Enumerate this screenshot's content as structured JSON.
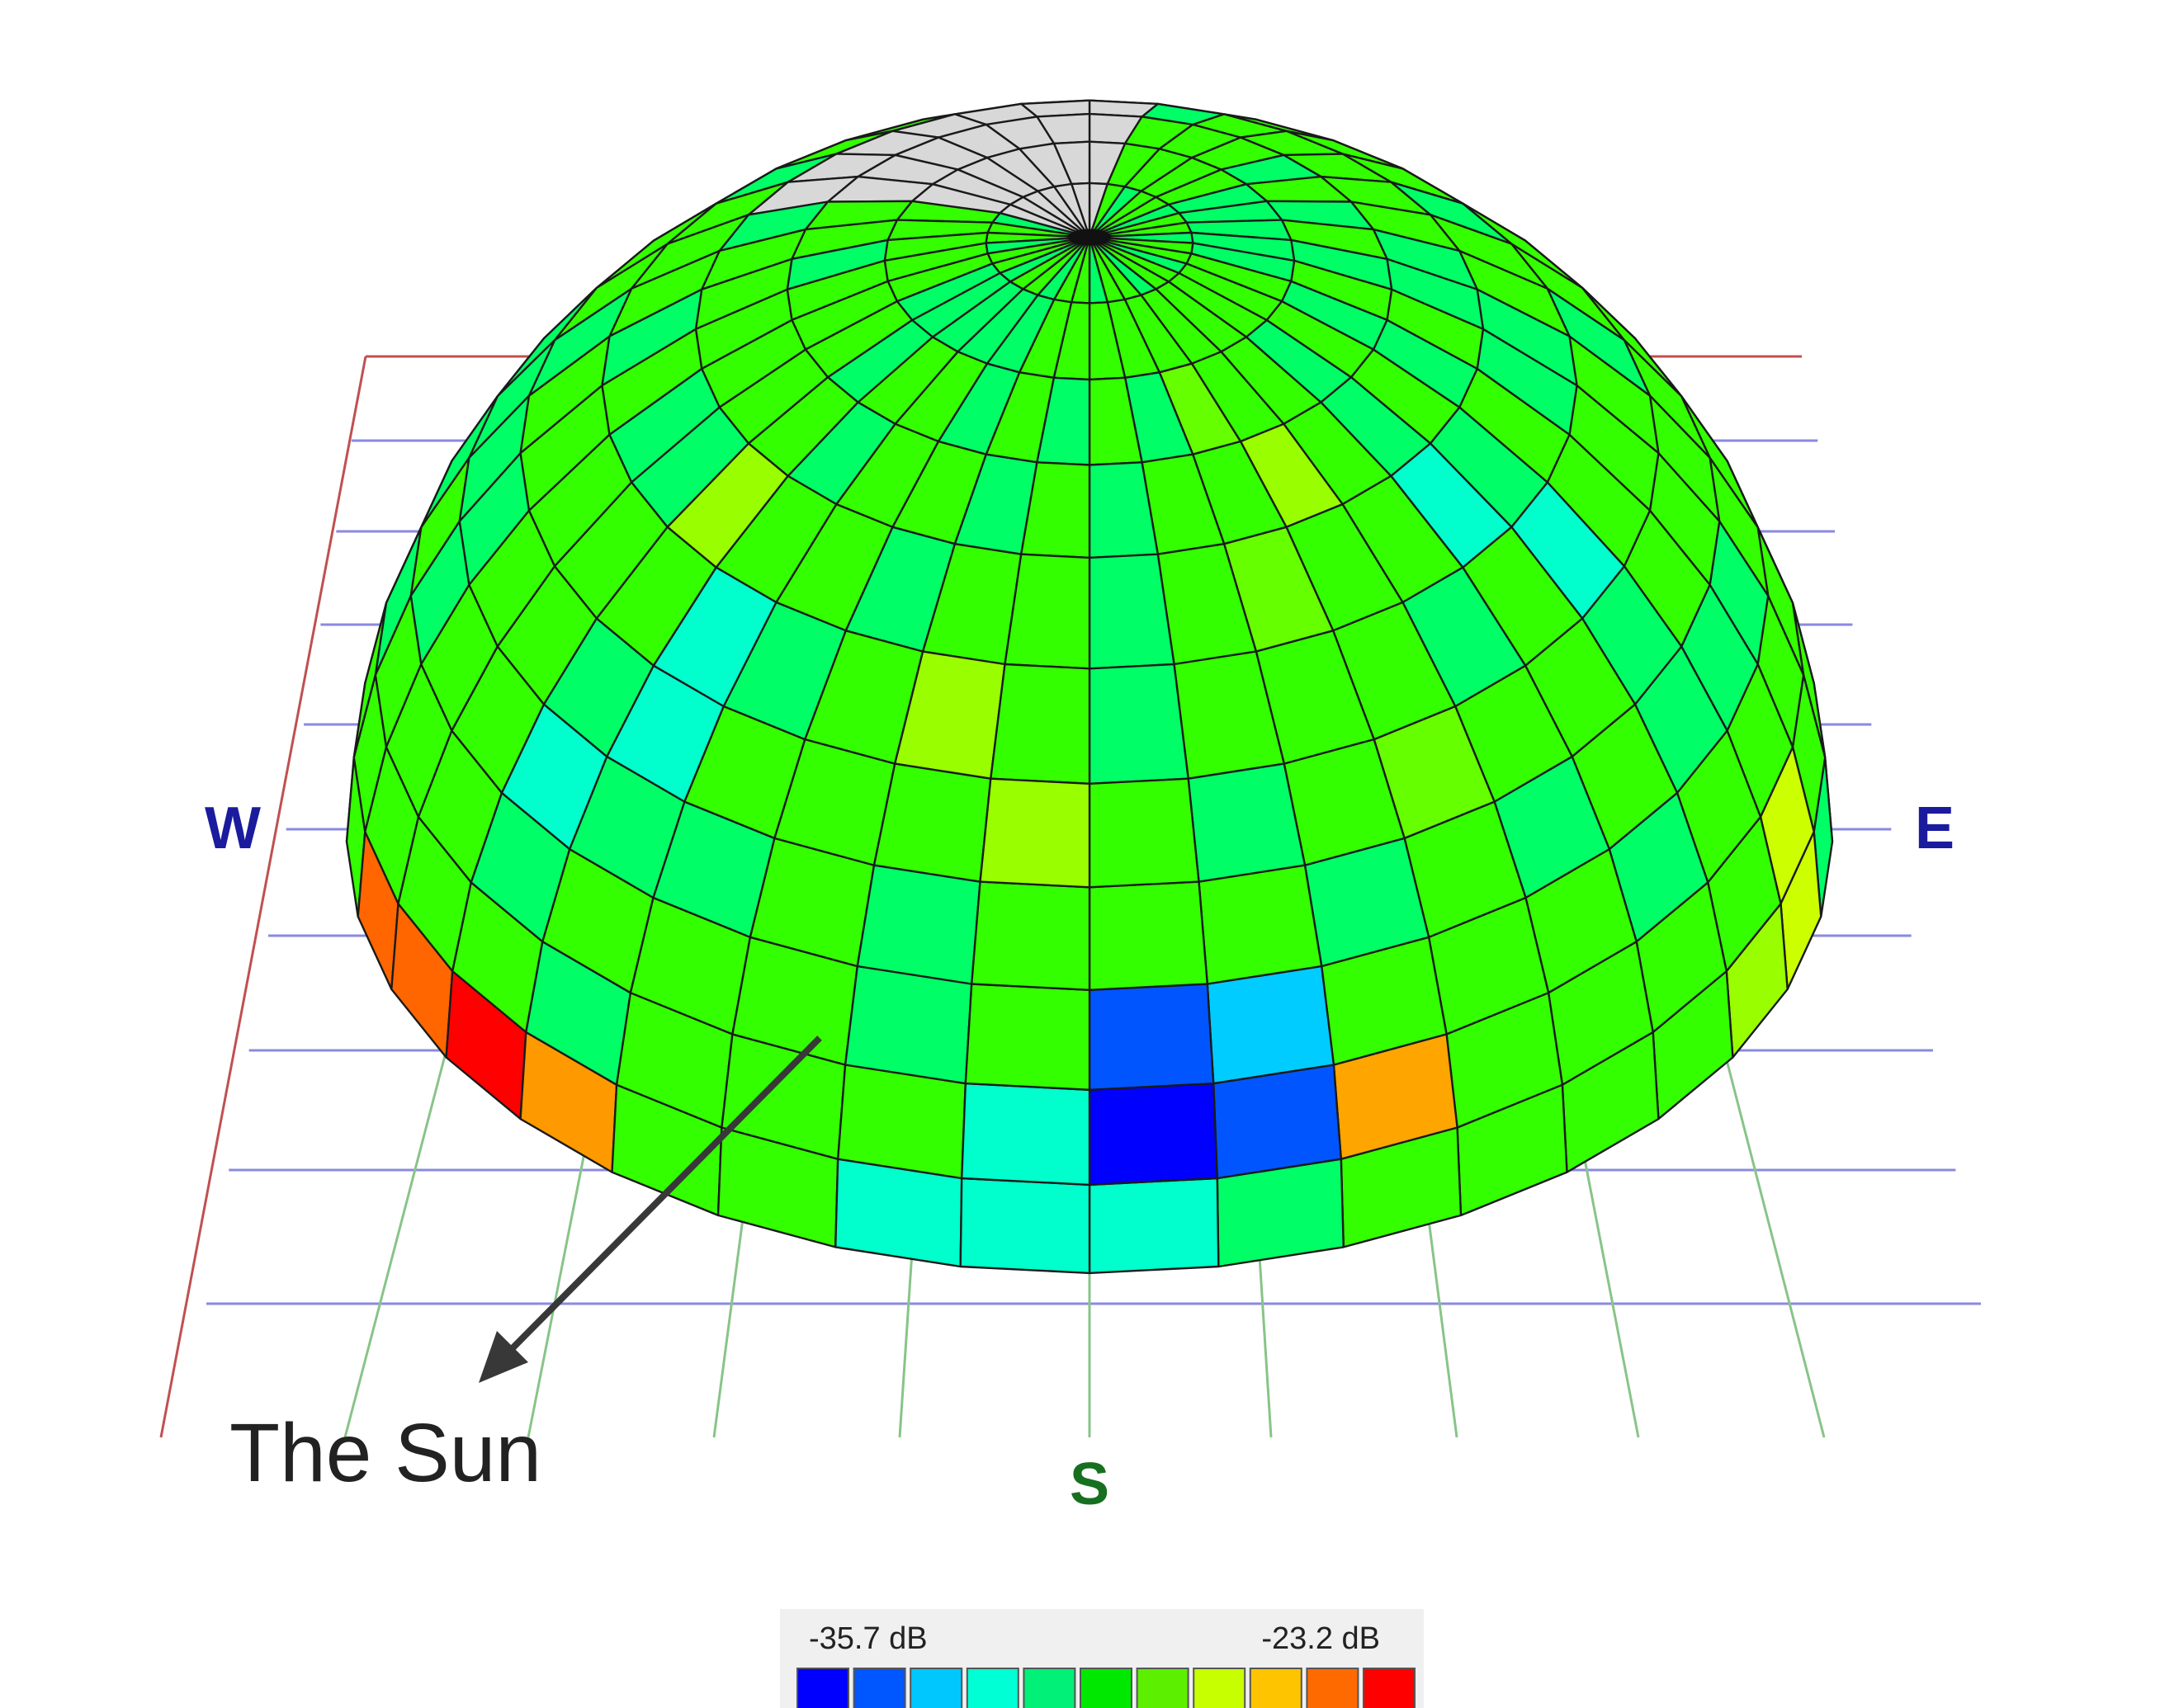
{
  "compass": {
    "west": "W",
    "east": "E",
    "south": "S"
  },
  "annotation": {
    "sun_label": "The Sun"
  },
  "legend": {
    "min_label": "-35.7 dB",
    "max_label": "-23.2 dB",
    "scale_colors": [
      "#0000ff",
      "#0057ff",
      "#00c8ff",
      "#00ffd4",
      "#00f078",
      "#00e800",
      "#5cf000",
      "#c8ff00",
      "#ffc400",
      "#ff6a00",
      "#ff0000"
    ]
  },
  "colors": {
    "grid_red": "#c05050",
    "grid_blue": "#8a8ae0",
    "grid_green": "#88c488",
    "mesh_line": "#1a1a1a",
    "north_cap": "#d8d8d8",
    "compass_blue": "#1b1b9e",
    "compass_green": "#17701f",
    "arrow": "#383838",
    "legend_background": "#f0f0f0"
  },
  "sky_map": {
    "rings_from_bottom": [
      [
        "#ccff00",
        "#99ff00",
        "#33ff00",
        "#33ff00",
        "#33ff00",
        "#33ff00",
        "#00ff66",
        "#00ffcc",
        "#00ffcc",
        "#00ffcc",
        "#33ff00",
        "#33ff00",
        "#ff9900",
        "#ff0000",
        "#ff6600"
      ],
      [
        "#ccff00",
        "#33ff00",
        "#33ff00",
        "#33ff00",
        "#33ff00",
        "#ffa500",
        "#0055ff",
        "#0000ff",
        "#00ffcc",
        "#33ff00",
        "#33ff00",
        "#33ff00",
        "#00ff66",
        "#33ff00",
        "#33ff00"
      ],
      [
        "#33ff00",
        "#33ff00",
        "#00ff66",
        "#33ff00",
        "#33ff00",
        "#33ff00",
        "#00ccff",
        "#0055ff",
        "#33ff00",
        "#00ff66",
        "#33ff00",
        "#33ff00",
        "#33ff00",
        "#00ff66",
        "#33ff00"
      ],
      [
        "#00ff66",
        "#00ff66",
        "#33ff00",
        "#00ff66",
        "#33ff00",
        "#00ff66",
        "#33ff00",
        "#33ff00",
        "#33ff00",
        "#00ff66",
        "#33ff00",
        "#00ff66",
        "#00ff66",
        "#00ffcc",
        "#33ff00"
      ],
      [
        "#33ff00",
        "#00ff66",
        "#33ff00",
        "#33ff00",
        "#66ff00",
        "#33ff00",
        "#00ff66",
        "#33ff00",
        "#99ff00",
        "#33ff00",
        "#33ff00",
        "#33ff00",
        "#00ffcc",
        "#00ff66",
        "#33ff00"
      ],
      [
        "#33ff00",
        "#00ffcc",
        "#33ff00",
        "#00ff66",
        "#33ff00",
        "#33ff00",
        "#33ff00",
        "#00ff66",
        "#33ff00",
        "#99ff00",
        "#33ff00",
        "#00ff66",
        "#00ffcc",
        "#33ff00",
        "#33ff00"
      ],
      [
        "#33ff00",
        "#00ff66",
        "#00ffcc",
        "#33ff00",
        "#33ff00",
        "#66ff00",
        "#33ff00",
        "#00ff66",
        "#33ff00",
        "#33ff00",
        "#00ff66",
        "#33ff00",
        "#33ff00",
        "#99ff00",
        "#00ff66"
      ],
      [
        "#00ff66",
        "#33ff00",
        "#00ff66",
        "#33ff00",
        "#99ff00",
        "#33ff00",
        "#33ff00",
        "#00ff66",
        "#33ff00",
        "#00ff66",
        "#33ff00",
        "#33ff00",
        "#00ff66",
        "#33ff00",
        "#33ff00"
      ],
      [
        "#00ff66",
        "#33ff00",
        "#00ff66",
        "#33ff00",
        "#33ff00",
        "#66ff00",
        "#00ff66",
        "#33ff00",
        "#00ff66",
        "#33ff00",
        "#00ff66",
        "#33ff00",
        "#33ff00",
        "#00ff66",
        "#33ff00"
      ]
    ]
  }
}
